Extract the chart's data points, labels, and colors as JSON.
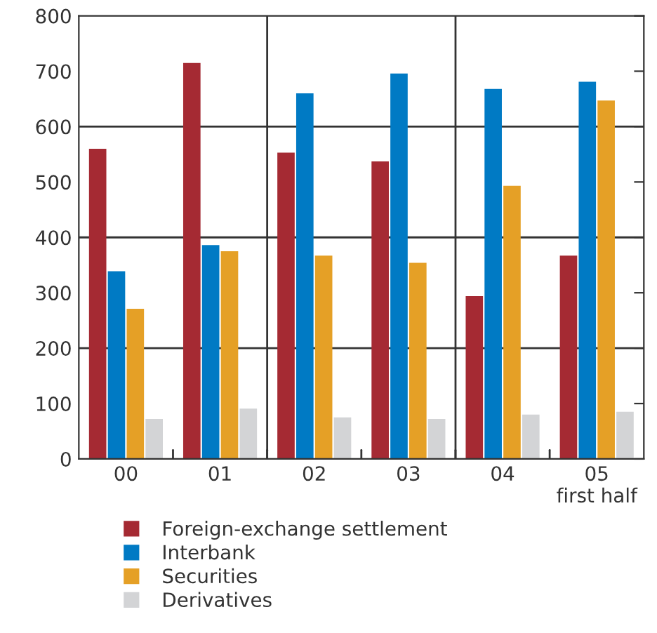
{
  "chart_data": {
    "type": "bar",
    "categories": [
      "00",
      "01",
      "02",
      "03",
      "04",
      "05\nfirst half"
    ],
    "series": [
      {
        "name": "Foreign-exchange settlement",
        "color": "#a52a33",
        "values": [
          560,
          715,
          553,
          537,
          294,
          367
        ]
      },
      {
        "name": "Interbank",
        "color": "#007ac4",
        "values": [
          339,
          386,
          660,
          696,
          668,
          681
        ]
      },
      {
        "name": "Securities",
        "color": "#e5a026",
        "values": [
          271,
          375,
          367,
          354,
          493,
          647
        ]
      },
      {
        "name": "Derivatives",
        "color": "#d3d4d6",
        "values": [
          72,
          91,
          75,
          72,
          80,
          85
        ]
      }
    ],
    "ylim": [
      0,
      800
    ],
    "yticks": [
      0,
      100,
      200,
      300,
      400,
      500,
      600,
      700,
      800
    ],
    "ref_lines": [
      {
        "axis": "y",
        "value": 200
      },
      {
        "axis": "y",
        "value": 400
      },
      {
        "axis": "y",
        "value": 600
      }
    ],
    "grid": false,
    "legend": "bottom"
  }
}
